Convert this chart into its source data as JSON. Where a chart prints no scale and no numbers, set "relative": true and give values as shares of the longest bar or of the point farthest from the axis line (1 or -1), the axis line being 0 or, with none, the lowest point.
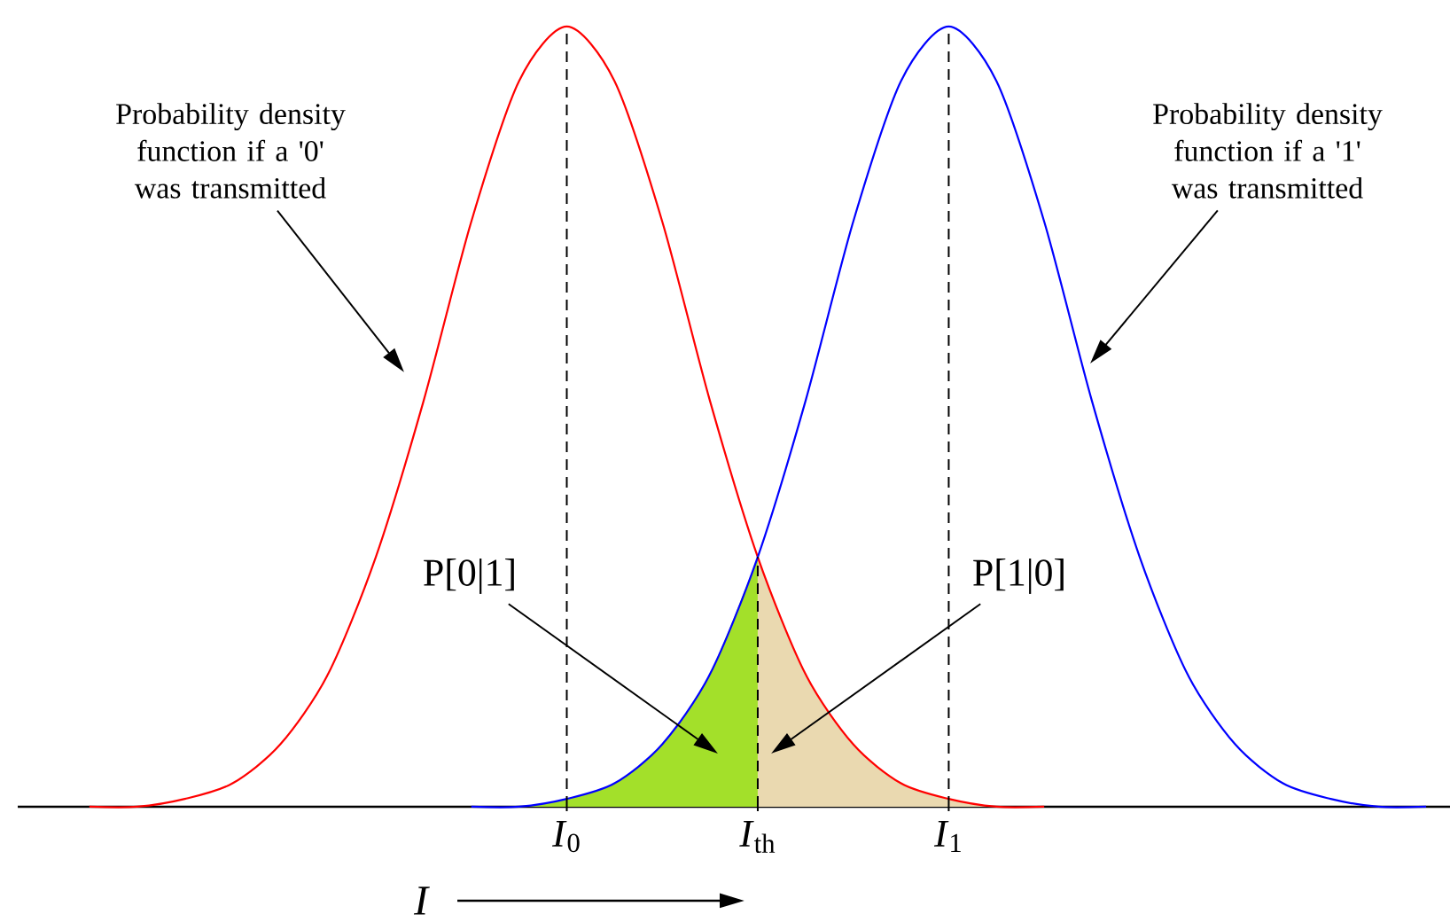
{
  "chart_data": {
    "type": "line",
    "relative": true,
    "categories": [
      null,
      null,
      null,
      null,
      null,
      null,
      null,
      null,
      null,
      null,
      null,
      "*I*$_{0}$",
      null,
      null,
      null,
      "*I*$_{th}$",
      null,
      null,
      null,
      "*I*$_{1}$",
      null,
      null,
      null,
      null,
      null,
      null,
      null,
      null,
      null,
      null
    ],
    "xlabel": "*I*",
    "series": [
      {
        "type": "area",
        "color": "#a3e02a",
        "values": [
          null,
          null,
          null,
          null,
          null,
          null,
          null,
          null,
          null,
          0,
          0,
          0.01,
          0.03,
          0.08,
          0.17,
          0.32,
          null,
          null,
          null,
          null,
          null,
          null,
          null,
          null,
          null,
          null,
          null,
          null,
          null,
          null
        ]
      },
      {
        "type": "area",
        "color": "#ead9b0",
        "values": [
          null,
          null,
          null,
          null,
          null,
          null,
          null,
          null,
          null,
          null,
          null,
          null,
          null,
          null,
          null,
          0.32,
          0.17,
          0.08,
          0.03,
          0.01,
          0,
          0,
          null,
          null,
          null,
          null,
          null,
          null,
          null,
          null
        ]
      },
      {
        "color": "#ff0000",
        "values": [
          null,
          0,
          0,
          0.01,
          0.03,
          0.08,
          0.17,
          0.32,
          0.52,
          0.75,
          0.93,
          1,
          0.93,
          0.75,
          0.52,
          0.32,
          0.17,
          0.08,
          0.03,
          0.01,
          0,
          0,
          null,
          null,
          null,
          null,
          null,
          null,
          null,
          null
        ]
      },
      {
        "color": "#0000ff",
        "values": [
          null,
          null,
          null,
          null,
          null,
          null,
          null,
          null,
          null,
          0,
          0,
          0.01,
          0.03,
          0.08,
          0.17,
          0.32,
          0.52,
          0.75,
          0.93,
          1,
          0.93,
          0.75,
          0.52,
          0.32,
          0.17,
          0.08,
          0.03,
          0.01,
          0,
          0
        ]
      }
    ],
    "ref_lines": [
      {
        "axis": "x",
        "value": "*I*$_{0}$",
        "color": "#000000",
        "line_style": "dashed"
      },
      {
        "axis": "x",
        "value": "*I*$_{th}$",
        "color": "#000000",
        "line_style": "dashed"
      },
      {
        "axis": "x",
        "value": "*I*$_{1}$",
        "color": "#000000",
        "line_style": "dashed"
      }
    ],
    "annotations": [
      "Probability density function if a '0' was transmitted",
      "Probability density function if a '1' was transmitted",
      "P[0|1]",
      "P[1|0]"
    ]
  }
}
